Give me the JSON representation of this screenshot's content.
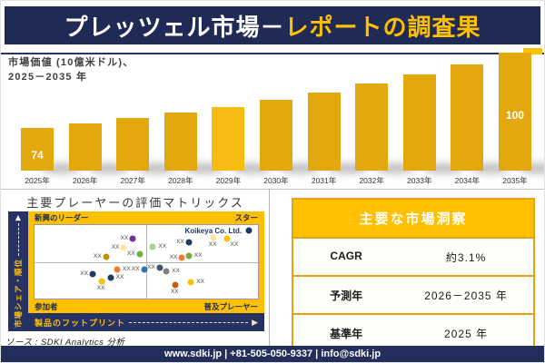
{
  "colors": {
    "navy": "#1F2A56",
    "gold": "#FFC000",
    "bar_gold": "#E3A80D",
    "bar_gold_light": "#F6BC14",
    "table_border_gold": "#E7A010"
  },
  "header": {
    "title_white": "プレッツェル市場－",
    "title_gold": "レポートの調査果"
  },
  "chart_data": [
    {
      "type": "bar",
      "title": "市場価値 (10億米ドル)、2025－2035 年",
      "title_lines": [
        "市場価値 (10億米ドル)、",
        "2025－2035 年"
      ],
      "unit": "10億米ドル",
      "categories": [
        "2025年",
        "2026年",
        "2027年",
        "2028年",
        "2029年",
        "2030年",
        "2031年",
        "2032年",
        "2033年",
        "2034年",
        "2035年"
      ],
      "values": [
        74,
        76.3,
        78.7,
        81.1,
        83.6,
        86.2,
        88.9,
        91.6,
        94.5,
        97.4,
        100
      ],
      "labeled_points": {
        "first": "74",
        "last": "100"
      },
      "ylim": [
        60,
        100
      ],
      "grid": "off",
      "legend": "none"
    },
    {
      "type": "scatter",
      "title": "主要プレーヤーの評価マトリックス",
      "y_axis_label": "市場シェア・順位",
      "x_axis_label": "製品のフットプリント",
      "quadrants": {
        "top_left": "新興のリーダー",
        "top_right": "スター",
        "bottom_left": "参加者",
        "bottom_right": "普及プレーヤー"
      },
      "generic_point_label": "XX",
      "highlighted_company": "Koikeya Co. Ltd.",
      "points": [
        {
          "x": 44,
          "y": 18,
          "color": "#7030A0",
          "label": "XX",
          "side": "left"
        },
        {
          "x": 40,
          "y": 31,
          "color": "#FFE699",
          "label": "XX",
          "side": "left"
        },
        {
          "x": 32,
          "y": 43,
          "color": "#BF9000",
          "label": "XX",
          "side": "left"
        },
        {
          "x": 47,
          "y": 40,
          "color": "#70AD47",
          "label": "XX",
          "side": "left"
        },
        {
          "x": 53,
          "y": 30,
          "color": "#A9D18E",
          "label": "XX",
          "side": "right"
        },
        {
          "x": 69,
          "y": 23,
          "color": "#1F3864",
          "label": "XX",
          "side": "left"
        },
        {
          "x": 86,
          "y": 19,
          "color": "#FFC000",
          "label": "XX",
          "side": "below-right"
        },
        {
          "x": 80,
          "y": 17,
          "color": "#FFE699",
          "label": "XX",
          "side": "below"
        },
        {
          "x": 66,
          "y": 45,
          "color": "#ED7D31",
          "label": "XX",
          "side": "left"
        },
        {
          "x": 69,
          "y": 42,
          "color": "#70AD47",
          "label": "XX",
          "side": "right"
        },
        {
          "x": 96,
          "y": 8,
          "color": "#1F3864",
          "name": "Koikeya Co. Ltd."
        },
        {
          "x": 37,
          "y": 60,
          "color": "#ED7D31",
          "label": "XX",
          "side": "right"
        },
        {
          "x": 49,
          "y": 60,
          "color": "#2E75B6",
          "label": "XX",
          "side": "left"
        },
        {
          "x": 26,
          "y": 67,
          "color": "#1F3864",
          "label": "XX",
          "side": "left"
        },
        {
          "x": 34,
          "y": 72,
          "color": "#1F3864",
          "label": "XX",
          "side": "right"
        },
        {
          "x": 30,
          "y": 76,
          "color": "#FFC000",
          "label": "XX",
          "side": "below"
        },
        {
          "x": 56,
          "y": 58,
          "color": "#44546A",
          "label": "XX",
          "side": "left"
        },
        {
          "x": 59,
          "y": 63,
          "color": "#808080",
          "label": "XX",
          "side": "right"
        },
        {
          "x": 63,
          "y": 81,
          "color": "#C55A11",
          "label": "XX",
          "side": "below"
        },
        {
          "x": 70,
          "y": 78,
          "color": "#FFC000",
          "label": "XX",
          "side": "right"
        }
      ]
    },
    {
      "type": "table",
      "title": "主要な市場洞察",
      "rows": [
        {
          "label": "CAGR",
          "value": "約3.1%"
        },
        {
          "label": "予測年",
          "value": "2026－2035 年"
        },
        {
          "label": "基準年",
          "value": "2025 年"
        }
      ]
    }
  ],
  "source": {
    "text": "ソース : SDKI Analytics 分析"
  },
  "footer": {
    "text": "www.sdki.jp | +81-505-050-9337 | info@sdki.jp"
  }
}
